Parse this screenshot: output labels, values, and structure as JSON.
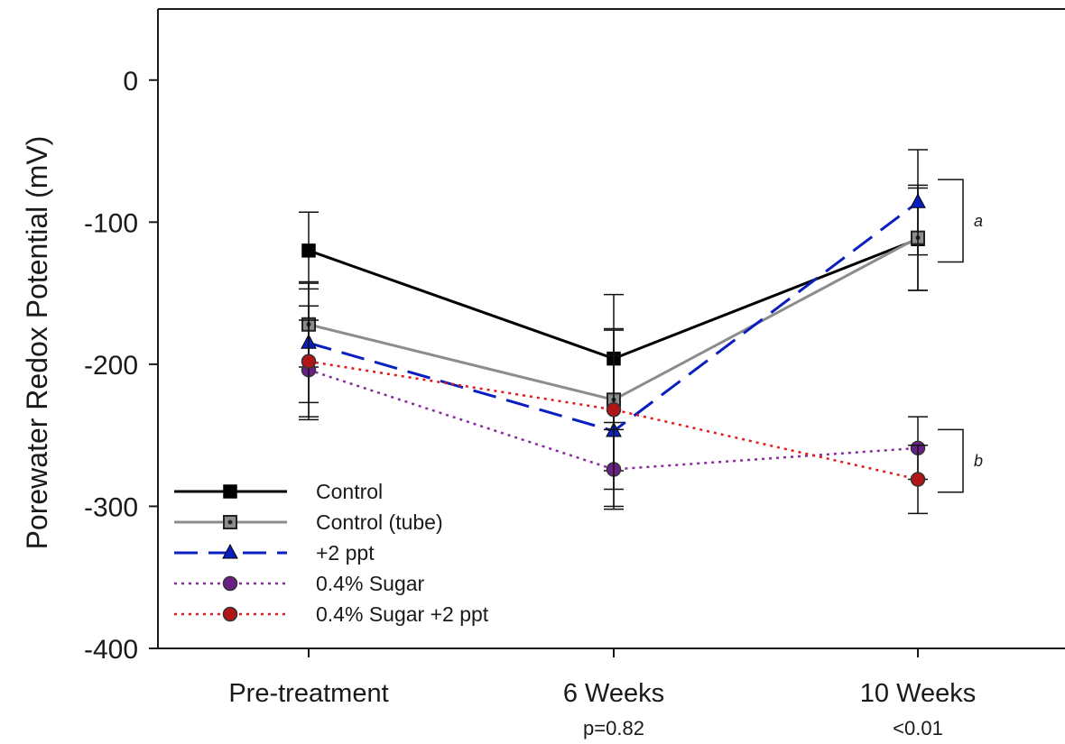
{
  "chart_data": {
    "type": "line",
    "ylabel": "Porewater Redox Potential (mV)",
    "xlabel": "",
    "categories": [
      "Pre-treatment",
      "6 Weeks",
      "10 Weeks"
    ],
    "category_sublabels": [
      "",
      "p=0.82",
      "<0.01"
    ],
    "ylim": [
      -400,
      50
    ],
    "yticks": [
      0,
      -100,
      -200,
      -300,
      -400
    ],
    "grid": false,
    "legend_position": "bottom-left",
    "series": [
      {
        "name": "Control",
        "values": [
          -120,
          -196,
          -112
        ],
        "errors": [
          27,
          45,
          36
        ],
        "color": "#000000",
        "line_style": "solid",
        "marker": "square"
      },
      {
        "name": "Control (tube)",
        "values": [
          -172,
          -225,
          -111
        ],
        "errors": [
          30,
          50,
          37
        ],
        "color": "#8c8c8c",
        "line_style": "solid",
        "marker": "square-dot"
      },
      {
        "name": "+2 ppt",
        "values": [
          -185,
          -247,
          -86
        ],
        "errors": [
          42,
          53,
          37
        ],
        "color": "#0a1fbf",
        "line_style": "dashed",
        "marker": "triangle"
      },
      {
        "name": "0.4% Sugar",
        "values": [
          -204,
          -274,
          -259
        ],
        "errors": [
          35,
          28,
          22
        ],
        "color": "#8a2a9e",
        "line_style": "dotted",
        "marker": "circle"
      },
      {
        "name": "0.4% Sugar +2 ppt",
        "values": [
          -198,
          -232,
          -281
        ],
        "errors": [
          39,
          56,
          24
        ],
        "color": "#e21b1b",
        "line_style": "dotted",
        "marker": "circle"
      }
    ],
    "annotations": [
      {
        "text": "a",
        "groups": [
          "Control",
          "Control (tube)",
          "+2 ppt"
        ],
        "category": "10 Weeks",
        "range": [
          -128,
          -70
        ]
      },
      {
        "text": "b",
        "groups": [
          "0.4% Sugar",
          "0.4% Sugar +2 ppt"
        ],
        "category": "10 Weeks",
        "range": [
          -290,
          -246
        ]
      }
    ]
  },
  "colors": {
    "axis": "#1a1a1a",
    "marker_fill": {
      "Control": "#000000",
      "Control (tube)": "#8c8c8c",
      "+2 ppt": "#0a1fbf",
      "0.4% Sugar": "#6a1f86",
      "0.4% Sugar +2 ppt": "#b01616"
    }
  }
}
